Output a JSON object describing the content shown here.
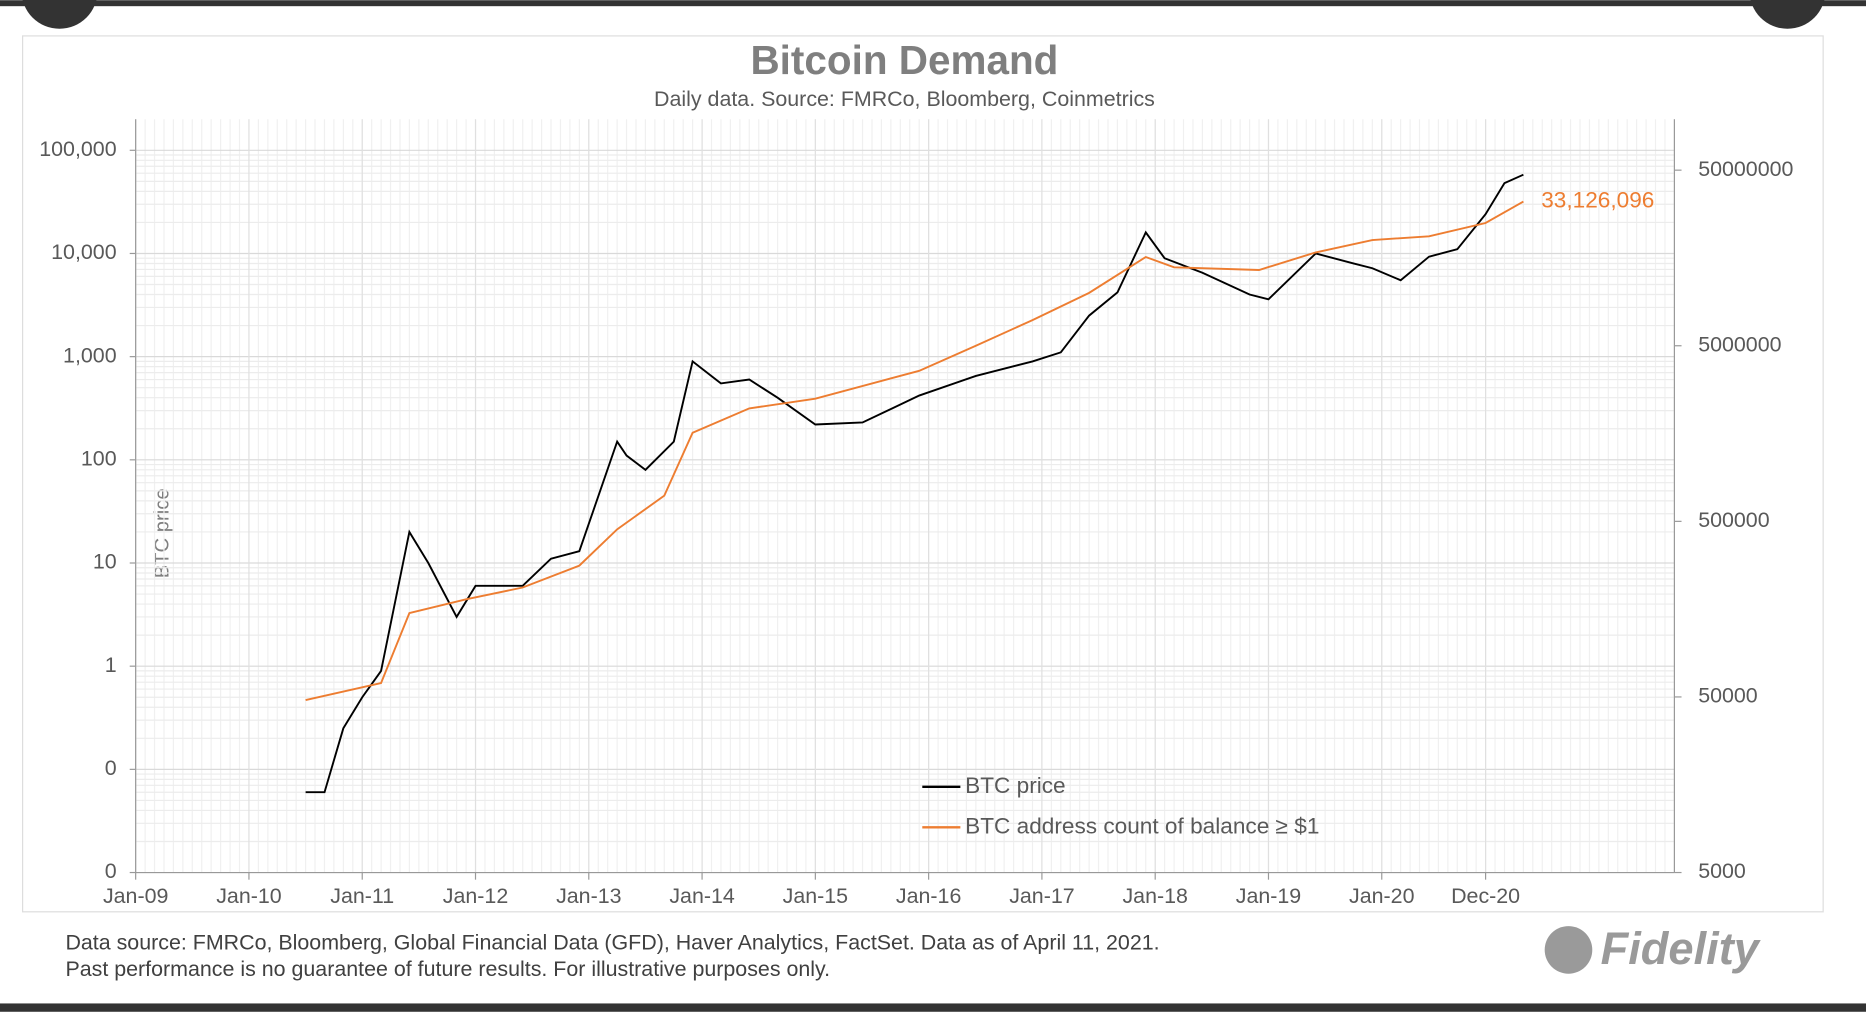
{
  "chart_data": {
    "type": "line",
    "title": "Bitcoin Demand",
    "subtitle": "Daily data.  Source: FMRCo, Bloomberg, Coinmetrics",
    "y_label": "BTC price",
    "log_scale": true,
    "grid": true,
    "legend": "lower center",
    "xlim": [
      "2009-01",
      "2022-08"
    ],
    "xticks": [
      {
        "value": "2009-01",
        "label": "Jan-09"
      },
      {
        "value": "2010-01",
        "label": "Jan-10"
      },
      {
        "value": "2011-01",
        "label": "Jan-11"
      },
      {
        "value": "2012-01",
        "label": "Jan-12"
      },
      {
        "value": "2013-01",
        "label": "Jan-13"
      },
      {
        "value": "2014-01",
        "label": "Jan-14"
      },
      {
        "value": "2015-01",
        "label": "Jan-15"
      },
      {
        "value": "2016-01",
        "label": "Jan-16"
      },
      {
        "value": "2017-01",
        "label": "Jan-17"
      },
      {
        "value": "2018-01",
        "label": "Jan-18"
      },
      {
        "value": "2019-01",
        "label": "Jan-19"
      },
      {
        "value": "2020-01",
        "label": "Jan-20"
      },
      {
        "value": "2020-12",
        "label": "Dec-20"
      }
    ],
    "ylim": [
      0.01,
      200000
    ],
    "yticks": [
      {
        "value": 0.01,
        "label": "0"
      },
      {
        "value": 0.1,
        "label": "0"
      },
      1,
      10,
      100,
      {
        "value": 1000,
        "label": "1,000"
      },
      {
        "value": 10000,
        "label": "10,000"
      },
      {
        "value": 100000,
        "label": "100,000"
      }
    ],
    "y2lim": [
      5000,
      97500000
    ],
    "y2ticks": [
      5000,
      50000,
      500000,
      5000000,
      50000000
    ],
    "series": [
      {
        "name": "BTC price",
        "color": "#000000",
        "axis": "y",
        "x": [
          "2010-07",
          "2010-09",
          "2010-11",
          "2011-01",
          "2011-03",
          "2011-06",
          "2011-08",
          "2011-11",
          "2012-01",
          "2012-06",
          "2012-09",
          "2012-12",
          "2013-04",
          "2013-05",
          "2013-07",
          "2013-10",
          "2013-12",
          "2014-03",
          "2014-06",
          "2014-09",
          "2015-01",
          "2015-06",
          "2015-12",
          "2016-06",
          "2016-12",
          "2017-03",
          "2017-06",
          "2017-09",
          "2017-12",
          "2018-02",
          "2018-06",
          "2018-11",
          "2019-01",
          "2019-06",
          "2019-10",
          "2019-12",
          "2020-03",
          "2020-06",
          "2020-09",
          "2020-12",
          "2021-02",
          "2021-04"
        ],
        "values": [
          0.06,
          0.06,
          0.25,
          0.5,
          0.9,
          20,
          10,
          3,
          6,
          6,
          11,
          13,
          150,
          110,
          80,
          150,
          900,
          550,
          600,
          400,
          220,
          230,
          420,
          650,
          900,
          1100,
          2500,
          4200,
          16000,
          9000,
          6500,
          4000,
          3600,
          10000,
          8000,
          7200,
          5500,
          9300,
          11000,
          24000,
          48000,
          58000
        ]
      },
      {
        "name": "BTC address count of balance ≥ $1",
        "color": "#ed7d31",
        "axis": "y2",
        "x": [
          "2010-07",
          "2011-03",
          "2011-06",
          "2011-12",
          "2012-06",
          "2012-12",
          "2013-04",
          "2013-09",
          "2013-12",
          "2014-06",
          "2015-01",
          "2015-12",
          "2016-06",
          "2016-12",
          "2017-06",
          "2017-12",
          "2018-03",
          "2018-12",
          "2019-06",
          "2019-12",
          "2020-06",
          "2020-12",
          "2021-04"
        ],
        "values": [
          48000,
          60000,
          150000,
          180000,
          210000,
          280000,
          450000,
          700000,
          1600000,
          2200000,
          2500000,
          3600000,
          5000000,
          7000000,
          10000000,
          16000000,
          14000000,
          13500000,
          17000000,
          20000000,
          21000000,
          25000000,
          33126096
        ],
        "value_labels": [
          null,
          null,
          null,
          null,
          null,
          null,
          null,
          null,
          null,
          null,
          null,
          null,
          null,
          null,
          null,
          null,
          null,
          null,
          null,
          null,
          null,
          null,
          "33,126,096"
        ]
      }
    ]
  },
  "footer": {
    "lines": [
      "Data source: FMRCo, Bloomberg, Global Financial Data (GFD), Haver Analytics, FactSet. Data as of April 11, 2021.",
      "Past performance is no guarantee of future results. For illustrative purposes only."
    ],
    "logo": "Fidelity"
  }
}
